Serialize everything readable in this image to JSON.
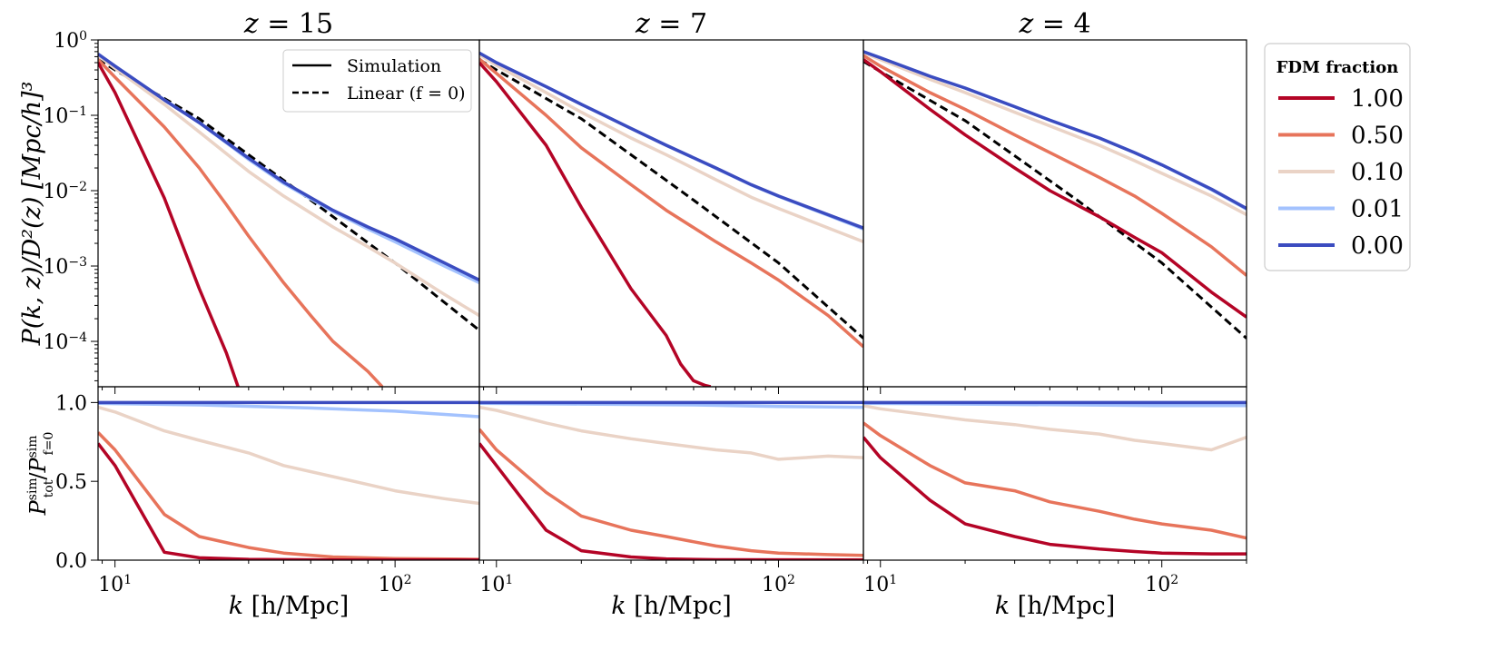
{
  "chart_data": {
    "type": "line",
    "colors": {
      "1.00": "#b40426",
      "0.50": "#e7745b",
      "0.10": "#ead3c6",
      "0.01": "#a3c2fe",
      "0.00": "#3b4cc0",
      "linear": "#000000"
    },
    "panels": [
      {
        "title_z": "15",
        "top": {
          "series": [
            {
              "fraction": "0.00",
              "k": [
                8.7,
                10,
                15,
                20,
                30,
                40,
                60,
                80,
                100,
                150,
                200
              ],
              "P": [
                0.65,
                0.45,
                0.16,
                0.08,
                0.027,
                0.013,
                0.0055,
                0.0033,
                0.0023,
                0.0011,
                0.00065
              ]
            },
            {
              "fraction": "0.01",
              "k": [
                8.7,
                10,
                15,
                20,
                30,
                40,
                60,
                80,
                100,
                150,
                200
              ],
              "P": [
                0.65,
                0.45,
                0.16,
                0.08,
                0.026,
                0.0125,
                0.0053,
                0.0031,
                0.0021,
                0.001,
                0.0006
              ]
            },
            {
              "fraction": "0.10",
              "k": [
                8.7,
                10,
                15,
                20,
                30,
                40,
                60,
                80,
                100,
                150,
                200
              ],
              "P": [
                0.62,
                0.42,
                0.14,
                0.06,
                0.018,
                0.0085,
                0.0033,
                0.0018,
                0.0011,
                0.00042,
                0.00022
              ]
            },
            {
              "fraction": "0.50",
              "k": [
                8.7,
                10,
                15,
                20,
                25,
                30,
                40,
                50,
                60,
                80,
                90
              ],
              "P": [
                0.55,
                0.32,
                0.07,
                0.02,
                0.0065,
                0.0025,
                0.0006,
                0.00022,
                0.0001,
                4e-05,
                2.5e-05
              ]
            },
            {
              "fraction": "1.00",
              "k": [
                8.7,
                10,
                15,
                20,
                25,
                27.5
              ],
              "P": [
                0.5,
                0.2,
                0.008,
                0.0005,
                7e-05,
                2.5e-05
              ]
            }
          ],
          "linear": {
            "k": [
              8.7,
              10,
              20,
              50,
              100,
              200
            ],
            "P": [
              0.55,
              0.4,
              0.09,
              0.0075,
              0.0011,
              0.00014
            ]
          }
        },
        "bottom": {
          "series": [
            {
              "fraction": "0.00",
              "k": [
                8.7,
                200
              ],
              "ratio": [
                1.0,
                1.0
              ]
            },
            {
              "fraction": "0.01",
              "k": [
                8.7,
                10,
                20,
                50,
                100,
                200
              ],
              "ratio": [
                0.995,
                0.993,
                0.985,
                0.965,
                0.945,
                0.91
              ]
            },
            {
              "fraction": "0.10",
              "k": [
                8.7,
                10,
                15,
                20,
                30,
                40,
                60,
                80,
                100,
                150,
                200
              ],
              "ratio": [
                0.97,
                0.94,
                0.82,
                0.76,
                0.68,
                0.6,
                0.53,
                0.48,
                0.44,
                0.39,
                0.36
              ]
            },
            {
              "fraction": "0.50",
              "k": [
                8.7,
                10,
                15,
                20,
                30,
                40,
                60,
                100,
                200
              ],
              "ratio": [
                0.81,
                0.7,
                0.29,
                0.15,
                0.08,
                0.045,
                0.02,
                0.01,
                0.005
              ]
            },
            {
              "fraction": "1.00",
              "k": [
                8.7,
                10,
                15,
                20,
                30,
                60,
                200
              ],
              "ratio": [
                0.74,
                0.6,
                0.05,
                0.015,
                0.005,
                0.002,
                0.001
              ]
            }
          ]
        }
      },
      {
        "title_z": "7",
        "top": {
          "series": [
            {
              "fraction": "0.00",
              "k": [
                8.7,
                10,
                15,
                20,
                30,
                40,
                60,
                80,
                100,
                150,
                200
              ],
              "P": [
                0.67,
                0.5,
                0.24,
                0.14,
                0.067,
                0.04,
                0.02,
                0.012,
                0.0085,
                0.0048,
                0.0032
              ]
            },
            {
              "fraction": "0.01",
              "k": [
                8.7,
                10,
                15,
                20,
                30,
                40,
                60,
                80,
                100,
                150,
                200
              ],
              "P": [
                0.67,
                0.5,
                0.24,
                0.14,
                0.067,
                0.04,
                0.0198,
                0.0119,
                0.0084,
                0.0047,
                0.0031
              ]
            },
            {
              "fraction": "0.10",
              "k": [
                8.7,
                10,
                15,
                20,
                30,
                40,
                60,
                80,
                100,
                150,
                200
              ],
              "P": [
                0.64,
                0.46,
                0.2,
                0.11,
                0.05,
                0.03,
                0.014,
                0.0082,
                0.0058,
                0.0032,
                0.0021
              ]
            },
            {
              "fraction": "0.50",
              "k": [
                8.7,
                10,
                15,
                20,
                30,
                40,
                60,
                80,
                100,
                150,
                200
              ],
              "P": [
                0.56,
                0.36,
                0.1,
                0.037,
                0.012,
                0.0055,
                0.0021,
                0.0011,
                0.00065,
                0.00022,
                8.5e-05
              ]
            },
            {
              "fraction": "1.00",
              "k": [
                8.7,
                10,
                15,
                20,
                30,
                40,
                45,
                50,
                55,
                57.5
              ],
              "P": [
                0.5,
                0.28,
                0.04,
                0.006,
                0.0005,
                0.00012,
                5e-05,
                3e-05,
                2.6e-05,
                2.5e-05
              ]
            }
          ],
          "linear": {
            "k": [
              8.7,
              10,
              20,
              50,
              100,
              200
            ],
            "P": [
              0.55,
              0.4,
              0.09,
              0.0075,
              0.0011,
              0.00011
            ]
          }
        },
        "bottom": {
          "series": [
            {
              "fraction": "0.00",
              "k": [
                8.7,
                200
              ],
              "ratio": [
                1.0,
                1.0
              ]
            },
            {
              "fraction": "0.01",
              "k": [
                8.7,
                20,
                50,
                100,
                200
              ],
              "ratio": [
                0.995,
                0.99,
                0.985,
                0.975,
                0.97
              ]
            },
            {
              "fraction": "0.10",
              "k": [
                8.7,
                10,
                15,
                20,
                30,
                40,
                60,
                80,
                100,
                150,
                200
              ],
              "ratio": [
                0.97,
                0.95,
                0.87,
                0.82,
                0.77,
                0.74,
                0.7,
                0.68,
                0.64,
                0.66,
                0.65
              ]
            },
            {
              "fraction": "0.50",
              "k": [
                8.7,
                10,
                15,
                20,
                30,
                40,
                60,
                80,
                100,
                150,
                200
              ],
              "ratio": [
                0.83,
                0.7,
                0.43,
                0.28,
                0.19,
                0.15,
                0.09,
                0.06,
                0.045,
                0.035,
                0.03
              ]
            },
            {
              "fraction": "1.00",
              "k": [
                8.7,
                10,
                15,
                20,
                30,
                40,
                60,
                200
              ],
              "ratio": [
                0.74,
                0.6,
                0.19,
                0.06,
                0.02,
                0.008,
                0.003,
                0.001
              ]
            }
          ]
        }
      },
      {
        "title_z": "4",
        "top": {
          "series": [
            {
              "fraction": "0.00",
              "k": [
                8.7,
                10,
                15,
                20,
                30,
                40,
                60,
                80,
                100,
                150,
                200
              ],
              "P": [
                0.7,
                0.58,
                0.33,
                0.23,
                0.13,
                0.086,
                0.05,
                0.032,
                0.022,
                0.0105,
                0.0058
              ]
            },
            {
              "fraction": "0.01",
              "k": [
                8.7,
                10,
                15,
                20,
                30,
                40,
                60,
                80,
                100,
                150,
                200
              ],
              "P": [
                0.7,
                0.58,
                0.33,
                0.23,
                0.13,
                0.086,
                0.05,
                0.032,
                0.022,
                0.0103,
                0.0057
              ]
            },
            {
              "fraction": "0.10",
              "k": [
                8.7,
                10,
                15,
                20,
                30,
                40,
                60,
                80,
                100,
                150,
                200
              ],
              "P": [
                0.68,
                0.55,
                0.3,
                0.2,
                0.11,
                0.072,
                0.04,
                0.025,
                0.017,
                0.0085,
                0.0048
              ]
            },
            {
              "fraction": "0.50",
              "k": [
                8.7,
                10,
                15,
                20,
                30,
                40,
                60,
                80,
                100,
                150,
                200
              ],
              "P": [
                0.62,
                0.45,
                0.2,
                0.12,
                0.055,
                0.032,
                0.015,
                0.0085,
                0.005,
                0.0018,
                0.00075
              ]
            },
            {
              "fraction": "1.00",
              "k": [
                8.7,
                10,
                15,
                20,
                30,
                40,
                60,
                80,
                100,
                150,
                200
              ],
              "P": [
                0.55,
                0.38,
                0.12,
                0.055,
                0.02,
                0.01,
                0.0045,
                0.0024,
                0.0015,
                0.00045,
                0.00021
              ]
            }
          ],
          "linear": {
            "k": [
              8.7,
              10,
              20,
              50,
              100,
              200
            ],
            "P": [
              0.52,
              0.38,
              0.085,
              0.0075,
              0.0011,
              0.00011
            ]
          }
        },
        "bottom": {
          "series": [
            {
              "fraction": "0.00",
              "k": [
                8.7,
                200
              ],
              "ratio": [
                1.0,
                1.0
              ]
            },
            {
              "fraction": "0.01",
              "k": [
                8.7,
                20,
                50,
                100,
                200
              ],
              "ratio": [
                0.995,
                0.99,
                0.985,
                0.98,
                0.98
              ]
            },
            {
              "fraction": "0.10",
              "k": [
                8.7,
                10,
                15,
                20,
                30,
                40,
                60,
                80,
                100,
                150,
                200
              ],
              "ratio": [
                0.98,
                0.96,
                0.92,
                0.89,
                0.86,
                0.83,
                0.8,
                0.76,
                0.74,
                0.7,
                0.78
              ]
            },
            {
              "fraction": "0.50",
              "k": [
                8.7,
                10,
                15,
                20,
                30,
                40,
                60,
                80,
                100,
                150,
                200
              ],
              "ratio": [
                0.87,
                0.79,
                0.6,
                0.49,
                0.44,
                0.37,
                0.31,
                0.26,
                0.23,
                0.19,
                0.14
              ]
            },
            {
              "fraction": "1.00",
              "k": [
                8.7,
                10,
                15,
                20,
                30,
                40,
                60,
                80,
                100,
                150,
                200
              ],
              "ratio": [
                0.78,
                0.65,
                0.38,
                0.23,
                0.15,
                0.1,
                0.07,
                0.055,
                0.045,
                0.04,
                0.04
              ]
            }
          ]
        }
      }
    ],
    "x_axis": {
      "label_var": "k",
      "label_unit": "[h/Mpc]",
      "range": [
        8.7,
        200
      ],
      "scale": "log",
      "tick_labels": [
        {
          "value": 10,
          "base": "10",
          "exp": "1"
        },
        {
          "value": 100,
          "base": "10",
          "exp": "2"
        }
      ]
    },
    "top_y_axis": {
      "label": "P(k, z)/D²(z) [Mpc/h]³",
      "range": [
        2.5e-05,
        1
      ],
      "scale": "log",
      "tick_labels": [
        {
          "value": 1,
          "base": "10",
          "exp": "0"
        },
        {
          "value": 0.1,
          "base": "10",
          "exp": "−1"
        },
        {
          "value": 0.01,
          "base": "10",
          "exp": "−2"
        },
        {
          "value": 0.001,
          "base": "10",
          "exp": "−3"
        },
        {
          "value": 0.0001,
          "base": "10",
          "exp": "−4"
        }
      ]
    },
    "bottom_y_axis": {
      "label": "P_tot^sim / P_f=0^sim",
      "range": [
        0,
        1.1
      ],
      "scale": "linear",
      "tick_labels": [
        "0.0",
        "0.5",
        "1.0"
      ],
      "tick_values": [
        0,
        0.5,
        1.0
      ]
    },
    "style_legend": {
      "entries": [
        {
          "label": "Simulation",
          "style": "solid"
        },
        {
          "label": "Linear (f = 0)",
          "style": "dashed"
        }
      ]
    },
    "fraction_legend": {
      "title": "FDM fraction",
      "entries": [
        "1.00",
        "0.50",
        "0.10",
        "0.01",
        "0.00"
      ]
    }
  }
}
